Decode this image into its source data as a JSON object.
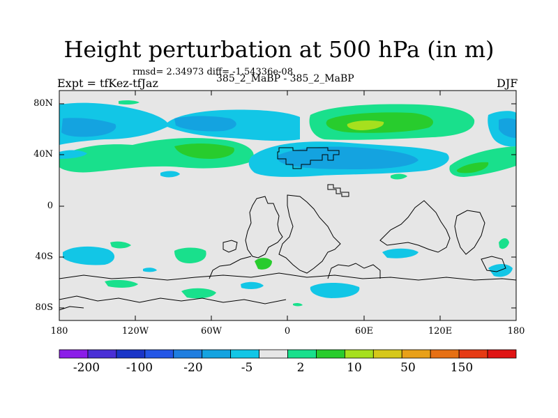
{
  "title": "Height perturbation at 500 hPa (in m)",
  "stats": "rmsd= 2.34973 diff= -1.54336e-08",
  "experiment": "Expt = tfKez-tfJaz",
  "runs": "385_2_MaBP - 385_2_MaBP",
  "season": "DJF",
  "map": {
    "lat_ticks": [
      "80N",
      "40N",
      "0",
      "40S",
      "80S"
    ],
    "lon_ticks": [
      "180",
      "120W",
      "60W",
      "0",
      "60E",
      "120E",
      "180"
    ]
  },
  "colorbar": {
    "colors": [
      "#8b1de8",
      "#4a2fd6",
      "#1a35c8",
      "#2456e6",
      "#1f7ee0",
      "#14a3e0",
      "#12c6e6",
      "#e6e6e6",
      "#19e08c",
      "#28cc2d",
      "#a6e01e",
      "#d6c81a",
      "#e8a018",
      "#e67014",
      "#e63a14",
      "#e01414"
    ],
    "labels": [
      "-200",
      "-100",
      "-20",
      "-5",
      "2",
      "10",
      "50",
      "150"
    ]
  },
  "colors": {
    "land_outline": "#000000",
    "map_background": "#e6e6e6"
  }
}
